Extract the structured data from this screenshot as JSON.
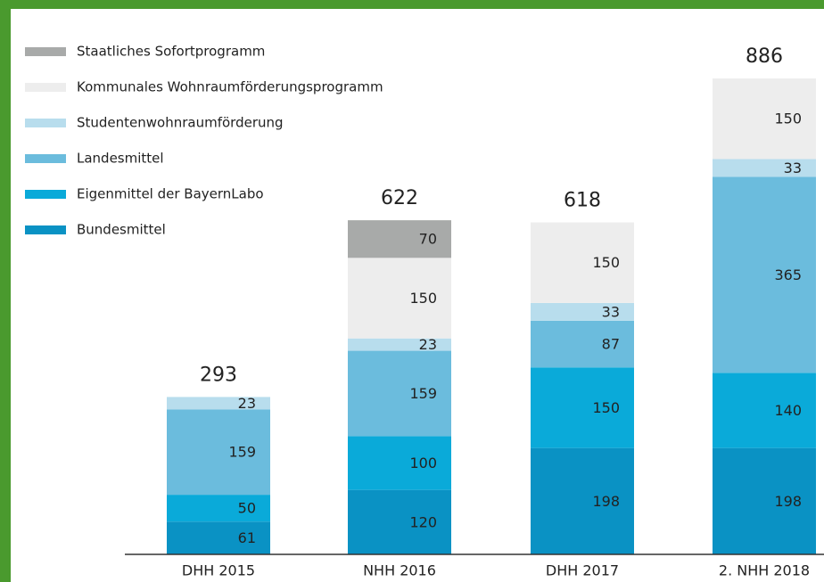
{
  "chart_data": {
    "type": "stacked-bar",
    "categories": [
      "DHH 2015",
      "NHH 2016",
      "DHH 2017",
      "2. NHH 2018"
    ],
    "totals": [
      293,
      622,
      618,
      886
    ],
    "series": [
      {
        "name": "Bundesmittel",
        "color": "#0a92c4",
        "values": [
          61,
          120,
          198,
          198
        ]
      },
      {
        "name": "Eigenmittel der BayernLabo",
        "color": "#0aaad9",
        "values": [
          50,
          100,
          150,
          140
        ]
      },
      {
        "name": "Landesmittel",
        "color": "#6bbcdd",
        "values": [
          159,
          159,
          87,
          365
        ]
      },
      {
        "name": "Studentenwohnraumförderung",
        "color": "#b8dded",
        "values": [
          23,
          23,
          33,
          33
        ]
      },
      {
        "name": "Kommunales Wohnraumförderungsprogramm",
        "color": "#ededed",
        "values": [
          null,
          150,
          150,
          150
        ]
      },
      {
        "name": "Staatliches Sofortprogramm",
        "color": "#a8aaa9",
        "values": [
          null,
          70,
          null,
          null
        ]
      }
    ]
  }
}
